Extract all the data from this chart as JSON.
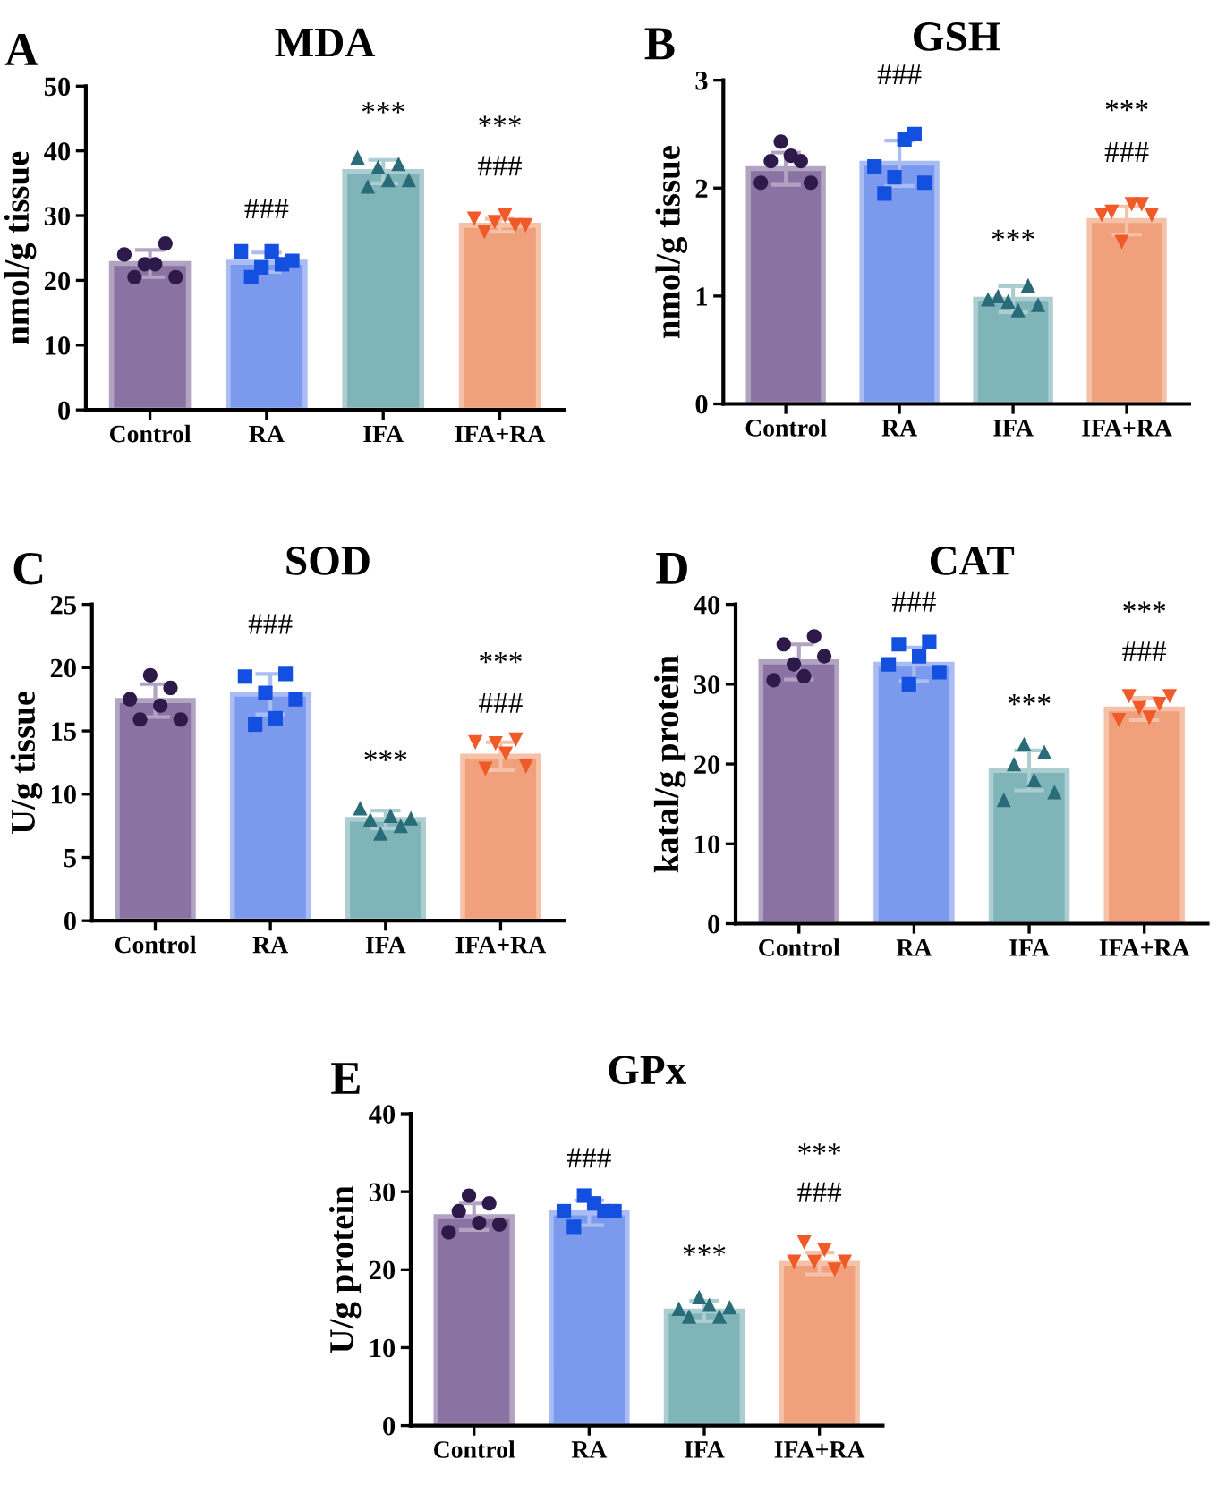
{
  "chart_data": [
    {
      "type": "bar",
      "title": "MDA",
      "ylabel": "nmol/g tissue",
      "categories": [
        "Control",
        "RA",
        "IFA",
        "IFA+RA"
      ],
      "ylim": [
        0,
        50
      ],
      "yticks": [
        0,
        10,
        20,
        30,
        40,
        50
      ],
      "annotations": [
        "A",
        "###",
        "***",
        "***",
        "###"
      ],
      "series": [
        {
          "values": [
            22.6,
            22.8,
            36.8,
            28.5
          ],
          "errors": [
            2.1,
            1.5,
            1.8,
            1.0
          ],
          "colors": [
            "#8a72a3",
            "#7b9aee",
            "#7fb4b8",
            "#f0a07a"
          ]
        },
        {
          "type": "scatter",
          "marker": "circle",
          "color": "#2e1a4a",
          "x": [
            "Control",
            "Control",
            "Control",
            "Control",
            "Control",
            "Control"
          ],
          "values": [
            24,
            20.5,
            22.5,
            22.5,
            25.7,
            20.5
          ]
        },
        {
          "type": "scatter",
          "marker": "square",
          "color": "#1450e0",
          "x": [
            "RA",
            "RA",
            "RA",
            "RA",
            "RA",
            "RA"
          ],
          "values": [
            24.5,
            20.5,
            22,
            24.5,
            22.5,
            23
          ]
        },
        {
          "type": "scatter",
          "marker": "triangle",
          "color": "#2a6b78",
          "x": [
            "IFA",
            "IFA",
            "IFA",
            "IFA",
            "IFA",
            "IFA"
          ],
          "values": [
            39,
            34.5,
            37.5,
            35.5,
            38,
            35.5
          ]
        },
        {
          "type": "scatter",
          "marker": "triangle down",
          "color": "#f05a28",
          "x": [
            "IFA+RA",
            "IFA+RA",
            "IFA+RA",
            "IFA+RA",
            "IFA+RA",
            "IFA+RA"
          ],
          "values": [
            29.5,
            27.5,
            29,
            30,
            28.5,
            28.5
          ]
        }
      ]
    },
    {
      "type": "bar",
      "title": "GSH",
      "ylabel": "nmol/g tissue",
      "categories": [
        "Control",
        "RA",
        "IFA",
        "IFA+RA"
      ],
      "ylim": [
        0,
        3
      ],
      "yticks": [
        0,
        1,
        2,
        3
      ],
      "annotations": [
        "B",
        "###",
        "***",
        "***",
        "###"
      ],
      "series": [
        {
          "values": [
            2.18,
            2.23,
            0.97,
            1.7
          ],
          "errors": [
            0.15,
            0.21,
            0.12,
            0.13
          ],
          "colors": [
            "#8a72a3",
            "#7b9aee",
            "#7fb4b8",
            "#f0a07a"
          ]
        },
        {
          "type": "scatter",
          "marker": "circle",
          "color": "#2e1a4a",
          "x": [
            "Control",
            "Control",
            "Control",
            "Control",
            "Control",
            "Control"
          ],
          "values": [
            2.05,
            2.25,
            2.43,
            2.3,
            2.25,
            2.05
          ]
        },
        {
          "type": "scatter",
          "marker": "square",
          "color": "#1450e0",
          "x": [
            "RA",
            "RA",
            "RA",
            "RA",
            "RA",
            "RA"
          ],
          "values": [
            2.2,
            1.95,
            2.1,
            2.45,
            2.5,
            2.05
          ]
        },
        {
          "type": "scatter",
          "marker": "triangle",
          "color": "#2a6b78",
          "x": [
            "IFA",
            "IFA",
            "IFA",
            "IFA",
            "IFA",
            "IFA"
          ],
          "values": [
            0.97,
            1.0,
            0.95,
            0.87,
            1.1,
            0.92
          ]
        },
        {
          "type": "scatter",
          "marker": "triangle down",
          "color": "#f05a28",
          "x": [
            "IFA+RA",
            "IFA+RA",
            "IFA+RA",
            "IFA+RA",
            "IFA+RA",
            "IFA+RA"
          ],
          "values": [
            1.75,
            1.78,
            1.5,
            1.85,
            1.85,
            1.75
          ]
        }
      ]
    },
    {
      "type": "bar",
      "title": "SOD",
      "ylabel": "U/g tissue",
      "categories": [
        "Control",
        "RA",
        "IFA",
        "IFA+RA"
      ],
      "ylim": [
        0,
        25
      ],
      "yticks": [
        0,
        5,
        10,
        15,
        20,
        25
      ],
      "annotations": [
        "C",
        "###",
        "***",
        "***",
        "###"
      ],
      "series": [
        {
          "values": [
            17.4,
            17.9,
            8.0,
            13.0
          ],
          "errors": [
            1.3,
            1.6,
            0.7,
            1.1
          ],
          "colors": [
            "#8a72a3",
            "#7b9aee",
            "#7fb4b8",
            "#f0a07a"
          ]
        },
        {
          "type": "scatter",
          "marker": "circle",
          "color": "#2e1a4a",
          "x": [
            "Control",
            "Control",
            "Control",
            "Control",
            "Control",
            "Control"
          ],
          "values": [
            17.5,
            15.9,
            19.4,
            17,
            18.4,
            15.9
          ]
        },
        {
          "type": "scatter",
          "marker": "square",
          "color": "#1450e0",
          "x": [
            "RA",
            "RA",
            "RA",
            "RA",
            "RA",
            "RA"
          ],
          "values": [
            19.3,
            15.5,
            18,
            16,
            19.5,
            17.5
          ]
        },
        {
          "type": "scatter",
          "marker": "triangle",
          "color": "#2a6b78",
          "x": [
            "IFA",
            "IFA",
            "IFA",
            "IFA",
            "IFA",
            "IFA"
          ],
          "values": [
            8.9,
            8.0,
            6.9,
            8.3,
            7.5,
            8.1
          ]
        },
        {
          "type": "scatter",
          "marker": "triangle down",
          "color": "#f05a28",
          "x": [
            "IFA+RA",
            "IFA+RA",
            "IFA+RA",
            "IFA+RA",
            "IFA+RA",
            "IFA+RA"
          ],
          "values": [
            14.1,
            12.0,
            14.0,
            13.2,
            14.3,
            12.2
          ]
        }
      ]
    },
    {
      "type": "bar",
      "title": "CAT",
      "ylabel": "katal/g protein",
      "categories": [
        "Control",
        "RA",
        "IFA",
        "IFA+RA"
      ],
      "ylim": [
        0,
        40
      ],
      "yticks": [
        0,
        10,
        20,
        30,
        40
      ],
      "annotations": [
        "D",
        "###",
        "***",
        "***",
        "###"
      ],
      "series": [
        {
          "values": [
            32.8,
            32.5,
            19.2,
            26.9
          ],
          "errors": [
            2.2,
            2.1,
            2.5,
            1.4
          ],
          "colors": [
            "#8a72a3",
            "#7b9aee",
            "#7fb4b8",
            "#f0a07a"
          ]
        },
        {
          "type": "scatter",
          "marker": "circle",
          "color": "#2e1a4a",
          "x": [
            "Control",
            "Control",
            "Control",
            "Control",
            "Control",
            "Control"
          ],
          "values": [
            30.5,
            35,
            32.5,
            31,
            36,
            33.5
          ]
        },
        {
          "type": "scatter",
          "marker": "square",
          "color": "#1450e0",
          "x": [
            "RA",
            "RA",
            "RA",
            "RA",
            "RA",
            "RA"
          ],
          "values": [
            32.5,
            35,
            30,
            33.5,
            35.3,
            31.5
          ]
        },
        {
          "type": "scatter",
          "marker": "triangle",
          "color": "#2a6b78",
          "x": [
            "IFA",
            "IFA",
            "IFA",
            "IFA",
            "IFA",
            "IFA"
          ],
          "values": [
            15.5,
            20,
            22.5,
            18,
            21.5,
            16.5
          ]
        },
        {
          "type": "scatter",
          "marker": "triangle down",
          "color": "#f05a28",
          "x": [
            "IFA+RA",
            "IFA+RA",
            "IFA+RA",
            "IFA+RA",
            "IFA+RA",
            "IFA+RA"
          ],
          "values": [
            25.5,
            28.5,
            27,
            25.8,
            27.5,
            28.5
          ]
        }
      ]
    },
    {
      "type": "bar",
      "title": "GPx",
      "ylabel": "U/g protein",
      "categories": [
        "Control",
        "RA",
        "IFA",
        "IFA+RA"
      ],
      "ylim": [
        0,
        40
      ],
      "yticks": [
        0,
        10,
        20,
        30,
        40
      ],
      "annotations": [
        "E",
        "###",
        "***",
        "***",
        "###"
      ],
      "series": [
        {
          "values": [
            26.8,
            27.3,
            14.7,
            20.8
          ],
          "errors": [
            1.7,
            1.6,
            1.3,
            1.4
          ],
          "colors": [
            "#8a72a3",
            "#7b9aee",
            "#7fb4b8",
            "#f0a07a"
          ]
        },
        {
          "type": "scatter",
          "marker": "circle",
          "color": "#2e1a4a",
          "x": [
            "Control",
            "Control",
            "Control",
            "Control",
            "Control",
            "Control"
          ],
          "values": [
            24.8,
            27.5,
            29.5,
            26,
            28.5,
            25.8
          ]
        },
        {
          "type": "scatter",
          "marker": "square",
          "color": "#1450e0",
          "x": [
            "RA",
            "RA",
            "RA",
            "RA",
            "RA",
            "RA"
          ],
          "values": [
            27.5,
            25.5,
            29.5,
            28.5,
            27.5,
            27.5
          ]
        },
        {
          "type": "scatter",
          "marker": "triangle",
          "color": "#2a6b78",
          "x": [
            "IFA",
            "IFA",
            "IFA",
            "IFA",
            "IFA",
            "IFA"
          ],
          "values": [
            15,
            14,
            16.5,
            15.5,
            14,
            15.2
          ]
        },
        {
          "type": "scatter",
          "marker": "triangle down",
          "color": "#f05a28",
          "x": [
            "IFA+RA",
            "IFA+RA",
            "IFA+RA",
            "IFA+RA",
            "IFA+RA",
            "IFA+RA"
          ],
          "values": [
            21,
            23.5,
            21,
            22.5,
            20,
            21
          ]
        }
      ]
    }
  ]
}
